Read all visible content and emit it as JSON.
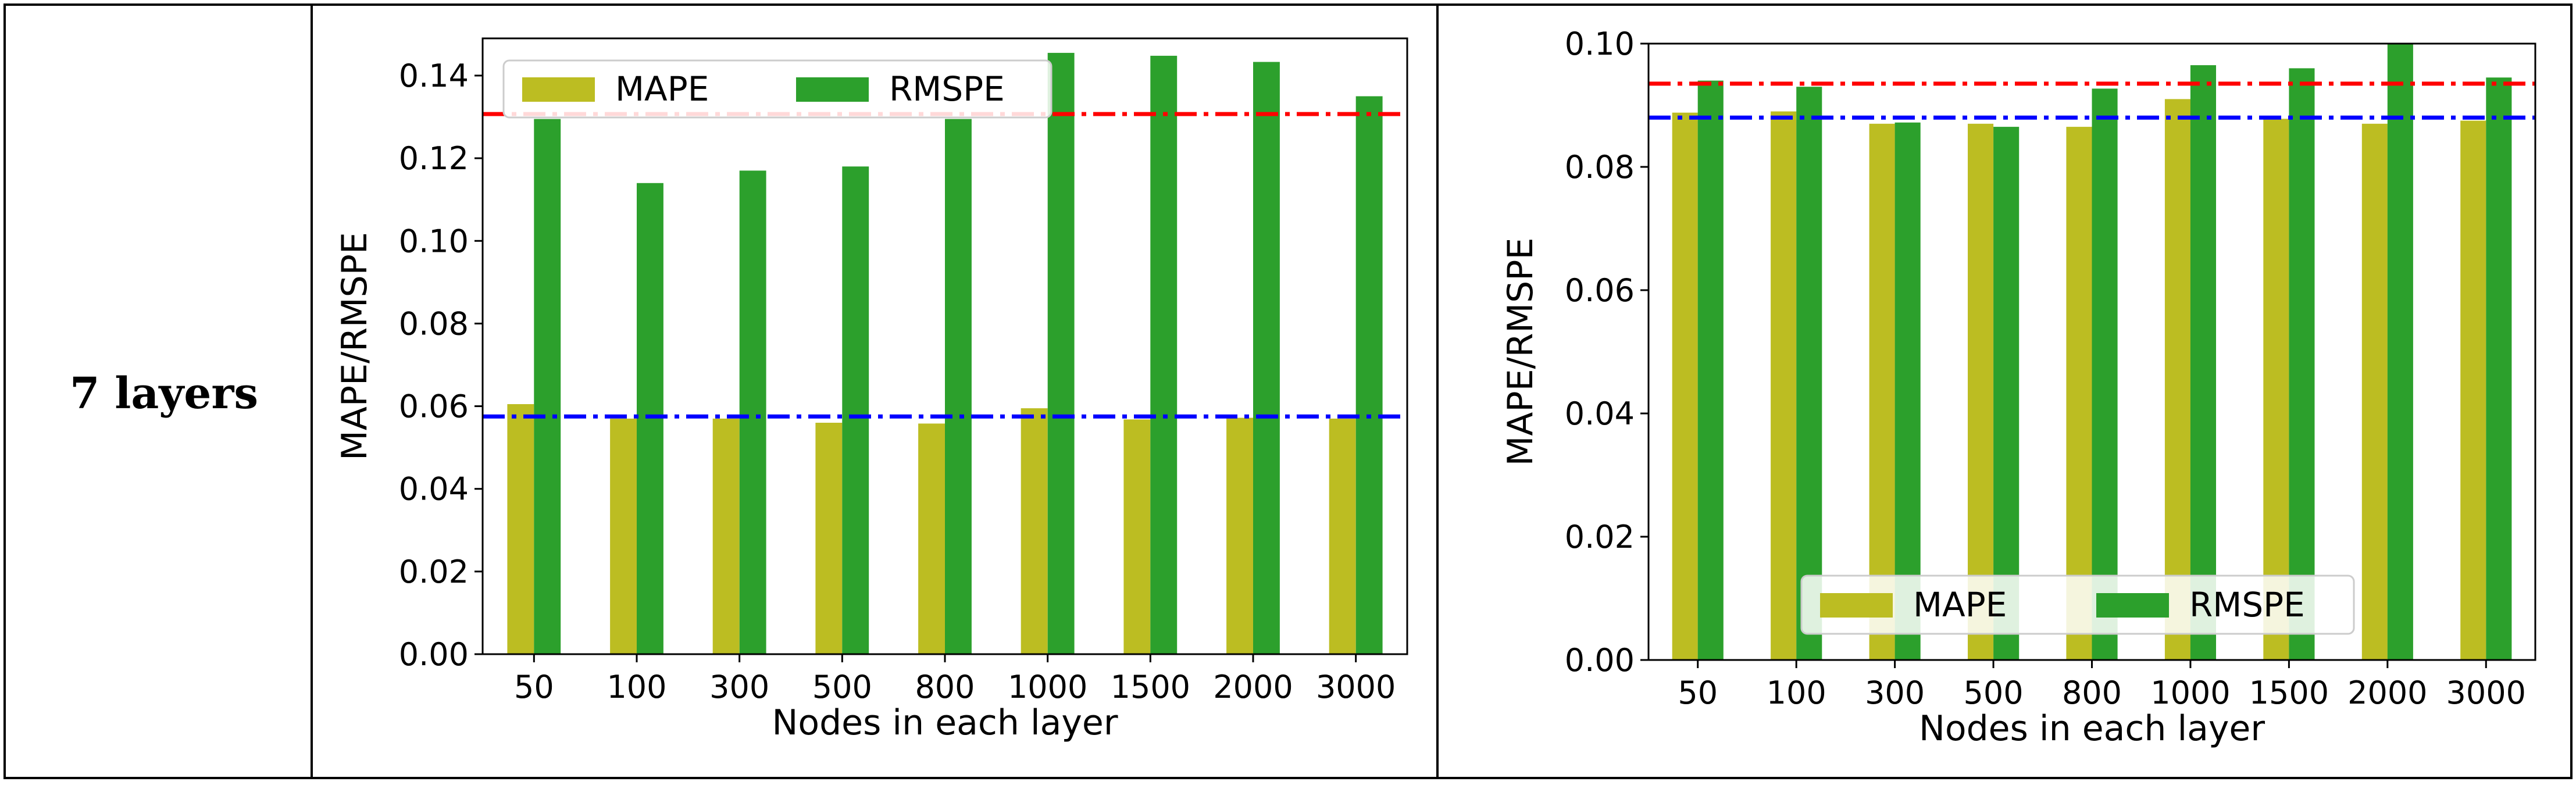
{
  "row_label": "7 layers",
  "colors": {
    "mape": "#bcbd22",
    "rmspe": "#2ca02c",
    "ref_red": "#ff0000",
    "ref_blue": "#0000ff",
    "legend_border": "#cccccc",
    "frame": "#000000"
  },
  "chart_data": [
    {
      "type": "bar",
      "xlabel": "Nodes in each layer",
      "ylabel": "MAPE/RMSPE",
      "categories": [
        "50",
        "100",
        "300",
        "500",
        "800",
        "1000",
        "1500",
        "2000",
        "3000"
      ],
      "series": [
        {
          "name": "MAPE",
          "values": [
            0.0605,
            0.057,
            0.057,
            0.056,
            0.0558,
            0.0595,
            0.0568,
            0.0572,
            0.057
          ]
        },
        {
          "name": "RMSPE",
          "values": [
            0.1295,
            0.114,
            0.117,
            0.118,
            0.1295,
            0.1455,
            0.1448,
            0.1433,
            0.135
          ]
        }
      ],
      "reference_lines": [
        {
          "value": 0.1307,
          "color": "#ff0000",
          "style": "dash-dot"
        },
        {
          "value": 0.0575,
          "color": "#0000ff",
          "style": "dash-dot"
        }
      ],
      "ylim": [
        0,
        0.149
      ],
      "yticks": [
        "0.00",
        "0.02",
        "0.04",
        "0.06",
        "0.08",
        "0.10",
        "0.12",
        "0.14"
      ],
      "legend_position": "top",
      "grid": false
    },
    {
      "type": "bar",
      "xlabel": "Nodes in each layer",
      "ylabel": "MAPE/RMSPE",
      "categories": [
        "50",
        "100",
        "300",
        "500",
        "800",
        "1000",
        "1500",
        "2000",
        "3000"
      ],
      "series": [
        {
          "name": "MAPE",
          "values": [
            0.0888,
            0.089,
            0.087,
            0.087,
            0.0865,
            0.091,
            0.0878,
            0.087,
            0.0875
          ]
        },
        {
          "name": "RMSPE",
          "values": [
            0.094,
            0.093,
            0.0872,
            0.0865,
            0.0927,
            0.0965,
            0.096,
            0.1,
            0.0945
          ]
        }
      ],
      "reference_lines": [
        {
          "value": 0.0935,
          "color": "#ff0000",
          "style": "dash-dot"
        },
        {
          "value": 0.088,
          "color": "#0000ff",
          "style": "dash-dot"
        }
      ],
      "ylim": [
        0,
        0.1
      ],
      "yticks": [
        "0.00",
        "0.02",
        "0.04",
        "0.06",
        "0.08",
        "0.10"
      ],
      "legend_position": "bottom",
      "grid": false
    }
  ]
}
